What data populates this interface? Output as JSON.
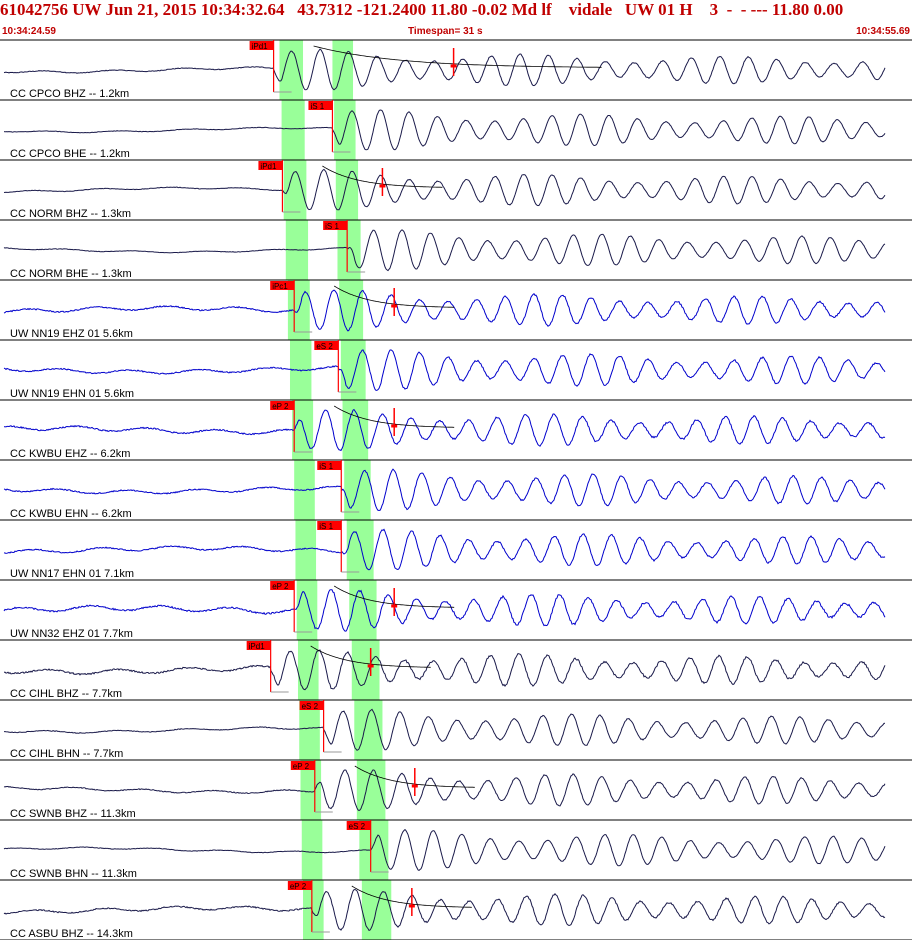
{
  "header": {
    "title": "61042756 UW Jun 21, 2015 10:34:32.64   43.7312 -121.2400 11.80 -0.02 Md lf    vidale   UW 01 H    3  -  - --- 11.80 0.00",
    "start_time": "10:34:24.59",
    "timespan": "Timespan=  31 s",
    "end_time": "10:34:55.69"
  },
  "chart_data": {
    "type": "seismogram",
    "time_window_s": 31,
    "colors": {
      "trace_dark": "#1a1a4a",
      "trace_blue": "#0000cc",
      "pick": "#ff0000",
      "band": "#99ff99"
    },
    "traces": [
      {
        "label": "CC CPCO BHZ -- 1.2km",
        "color": "blue_dark",
        "pick": "iPd1",
        "pick_t": 9.3,
        "decay": true,
        "noise": 0.18
      },
      {
        "label": "CC CPCO BHE -- 1.2km",
        "color": "blue_dark",
        "pick": "iS 1",
        "pick_t": 11.3,
        "decay": false,
        "noise": 0.12
      },
      {
        "label": "CC NORM BHZ -- 1.3km",
        "color": "blue_dark",
        "pick": "iPd1",
        "pick_t": 9.6,
        "decay": true,
        "noise": 0.14
      },
      {
        "label": "CC NORM BHE -- 1.3km",
        "color": "blue_dark",
        "pick": "iS 1",
        "pick_t": 11.8,
        "decay": false,
        "noise": 0.12
      },
      {
        "label": "UW NN19 EHZ 01 5.6km",
        "color": "blue",
        "pick": "iPc1",
        "pick_t": 10.0,
        "decay": true,
        "noise": 0.32
      },
      {
        "label": "UW NN19 EHN 01 5.6km",
        "color": "blue",
        "pick": "eS 2",
        "pick_t": 11.5,
        "decay": false,
        "noise": 0.3
      },
      {
        "label": "CC KWBU EHZ -- 6.2km",
        "color": "blue",
        "pick": "eP 2",
        "pick_t": 10.0,
        "decay": true,
        "noise": 0.34
      },
      {
        "label": "CC KWBU EHN -- 6.2km",
        "color": "blue",
        "pick": "iS 1",
        "pick_t": 11.6,
        "decay": false,
        "noise": 0.3
      },
      {
        "label": "UW NN17 EHN 01 7.1km",
        "color": "blue",
        "pick": "iS 1",
        "pick_t": 11.6,
        "decay": false,
        "noise": 0.32
      },
      {
        "label": "UW NN32 EHZ 01 7.7km",
        "color": "blue",
        "pick": "eP 2",
        "pick_t": 10.0,
        "decay": true,
        "noise": 0.4
      },
      {
        "label": "CC CIHL BHZ -- 7.7km",
        "color": "blue_dark",
        "pick": "iPd1",
        "pick_t": 9.2,
        "decay": true,
        "noise": 0.38
      },
      {
        "label": "CC CIHL BHN -- 7.7km",
        "color": "blue_dark",
        "pick": "eS 2",
        "pick_t": 11.0,
        "decay": false,
        "noise": 0.18
      },
      {
        "label": "CC SWNB BHZ -- 11.3km",
        "color": "blue_dark",
        "pick": "eP 2",
        "pick_t": 10.7,
        "decay": true,
        "noise": 0.22
      },
      {
        "label": "CC SWNB BHN -- 11.3km",
        "color": "blue_dark",
        "pick": "eS 2",
        "pick_t": 12.6,
        "decay": false,
        "noise": 0.14
      },
      {
        "label": "CC ASBU BHZ -- 14.3km",
        "color": "blue_dark",
        "pick": "eP 2",
        "pick_t": 10.6,
        "decay": true,
        "noise": 0.3
      }
    ],
    "p_band_t": [
      [
        9.5,
        10.3
      ],
      [
        10.0,
        10.7
      ],
      [
        10.3,
        11.0
      ]
    ],
    "s_band_t": [
      [
        11.3,
        12.0
      ],
      [
        11.7,
        12.6
      ],
      [
        12.3,
        13.3
      ]
    ]
  }
}
